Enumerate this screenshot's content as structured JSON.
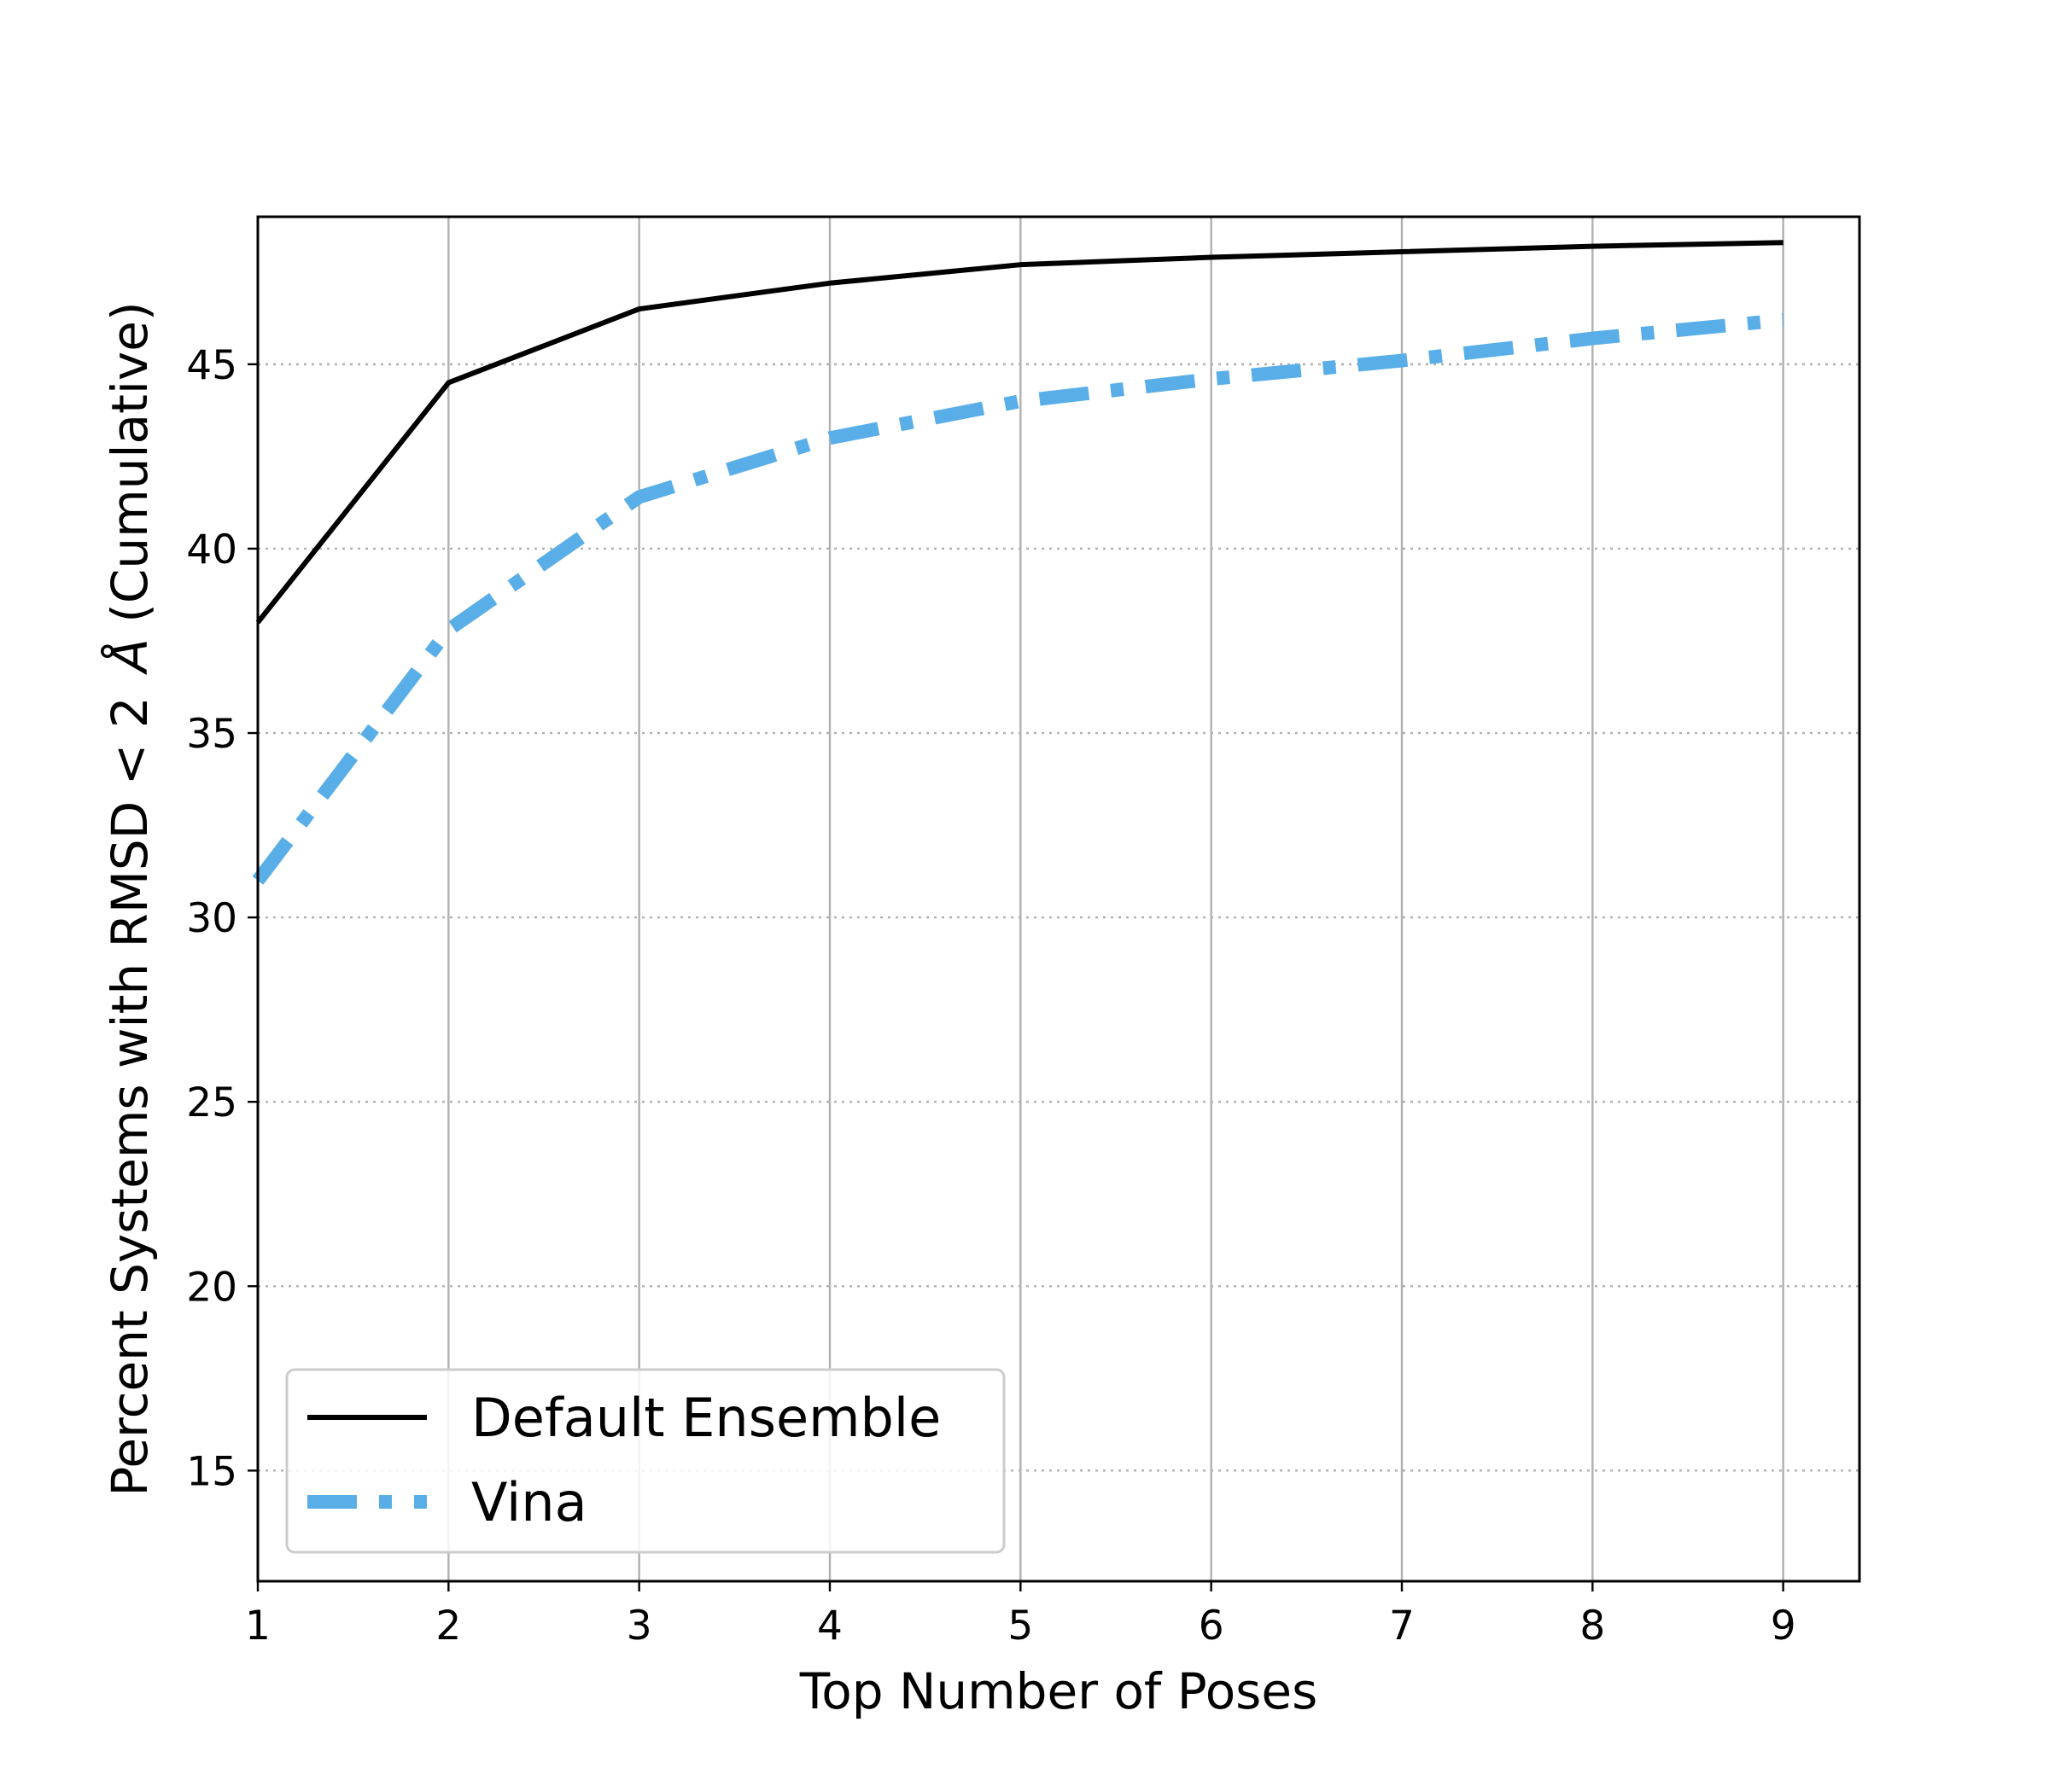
{
  "chart_data": {
    "type": "line",
    "x": [
      1,
      2,
      3,
      4,
      5,
      6,
      7,
      8,
      9
    ],
    "series": [
      {
        "name": "Default Ensemble",
        "values": [
          38.0,
          44.5,
          46.5,
          47.2,
          47.7,
          47.9,
          48.05,
          48.2,
          48.3
        ],
        "color": "#000000",
        "style": "solid"
      },
      {
        "name": "Vina",
        "values": [
          31.0,
          37.8,
          41.4,
          43.0,
          44.0,
          44.6,
          45.1,
          45.7,
          46.2
        ],
        "color": "#5aaee8",
        "style": "dashdot"
      }
    ],
    "xlabel": "Top Number of Poses",
    "ylabel_prefix": "Percent Systems with RMSD < 2",
    "ylabel_unit": "Å",
    "ylabel_suffix": "(Cumulative)",
    "xlim": [
      1,
      9.4
    ],
    "ylim": [
      12,
      49
    ],
    "xticks": [
      "1",
      "2",
      "3",
      "4",
      "5",
      "6",
      "7",
      "8",
      "9"
    ],
    "yticks": [
      "15",
      "20",
      "25",
      "30",
      "35",
      "40",
      "45"
    ],
    "grid": {
      "x": "solid",
      "y": "dotted"
    },
    "legend_position": "lower-left"
  }
}
